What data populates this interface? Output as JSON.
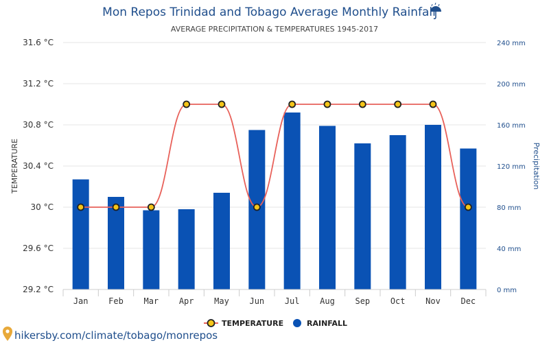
{
  "chart_data": {
    "type": "bar+line",
    "title": "Mon Repos Trinidad and Tobago Average Monthly Rainfall",
    "title_icon": "umbrella-rain-icon",
    "subtitle": "AVERAGE PRECIPITATION & TEMPERATURES 1945-2017",
    "categories": [
      "Jan",
      "Feb",
      "Mar",
      "Apr",
      "May",
      "Jun",
      "Jul",
      "Aug",
      "Sep",
      "Oct",
      "Nov",
      "Dec"
    ],
    "left_axis": {
      "label": "TEMPERATURE",
      "ticks": [
        "29.2 °C",
        "29.6 °C",
        "30 °C",
        "30.4 °C",
        "30.8 °C",
        "31.2 °C",
        "31.6 °C"
      ],
      "tick_values": [
        29.2,
        29.6,
        30.0,
        30.4,
        30.8,
        31.2,
        31.6
      ],
      "ylim": [
        29.2,
        31.6
      ]
    },
    "right_axis": {
      "label": "Precipitation",
      "ticks": [
        "0 mm",
        "40 mm",
        "80 mm",
        "120 mm",
        "160 mm",
        "200 mm",
        "240 mm"
      ],
      "tick_values": [
        0,
        40,
        80,
        120,
        160,
        200,
        240
      ],
      "ylim": [
        0,
        240
      ]
    },
    "series": [
      {
        "name": "TEMPERATURE",
        "type": "line",
        "axis": "left",
        "color": "#e8615a",
        "marker_color": "#f5c518",
        "values": [
          30.0,
          30.0,
          30.0,
          31.0,
          31.0,
          30.0,
          31.0,
          31.0,
          31.0,
          31.0,
          31.0,
          30.0
        ]
      },
      {
        "name": "RAINFALL",
        "type": "bar",
        "axis": "right",
        "color": "#0a52b4",
        "values": [
          107,
          90,
          77,
          78,
          94,
          155,
          172,
          159,
          142,
          150,
          160,
          137
        ]
      }
    ],
    "grid": true,
    "legend": "bottom-center"
  },
  "footer": {
    "source": "hikersby.com/climate/tobago/monrepos",
    "source_icon": "location-pin-icon"
  }
}
